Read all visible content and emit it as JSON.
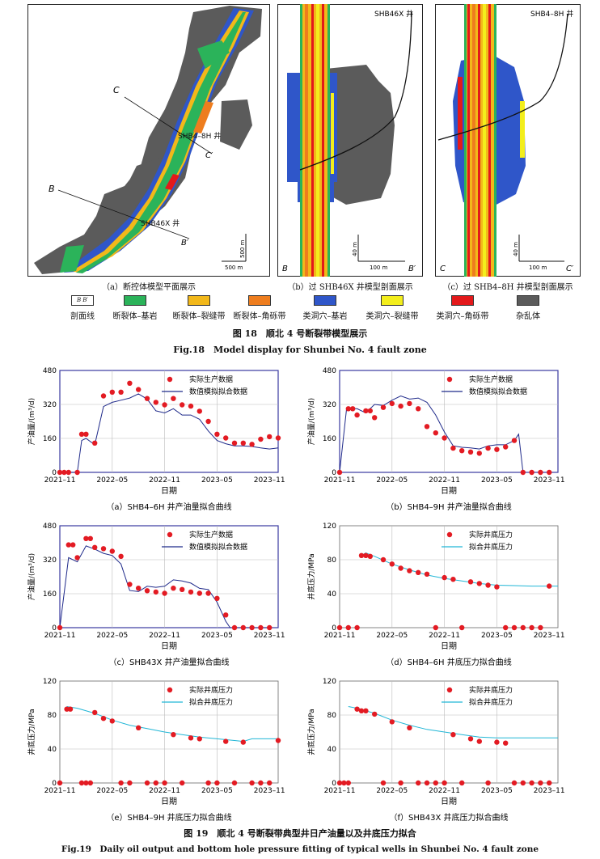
{
  "fig18": {
    "panels": [
      {
        "caption": "（a）断控体模型平面展示",
        "labels": {
          "C": "C",
          "Cp": "C′",
          "B": "B",
          "Bp": "B′",
          "well1": "SHB4–8H 井",
          "well2": "SHB46X 井",
          "scale_v": "500 m",
          "scale_h": "500 m"
        }
      },
      {
        "caption": "（b）过 SHB46X 井模型剖面展示",
        "labels": {
          "well": "SHB46X 井",
          "left": "B",
          "right": "B′",
          "scale_v": "40 m",
          "scale_h": "100 m"
        }
      },
      {
        "caption": "（c）过 SHB4–8H 井模型剖面展示",
        "labels": {
          "well": "SHB4–8H 井",
          "left": "C",
          "right": "C′",
          "scale_v": "40 m",
          "scale_h": "100 m"
        }
      }
    ],
    "legend_line_label": "剖面线",
    "legend_line_glyph": "B   B′",
    "legend": [
      {
        "name": "断裂体–基岩",
        "color": "#2bb35a"
      },
      {
        "name": "断裂体–裂缝带",
        "color": "#f2b81a"
      },
      {
        "name": "断裂体–角砾带",
        "color": "#ee7d1e"
      },
      {
        "name": "类洞穴–基岩",
        "color": "#2f56c9"
      },
      {
        "name": "类洞穴–裂缝带",
        "color": "#f3ee1c"
      },
      {
        "name": "类洞穴–角砾带",
        "color": "#e3191b"
      },
      {
        "name": "杂乱体",
        "color": "#5b5b5b"
      }
    ],
    "title_cn": "图 18　顺北 4 号断裂带模型展示",
    "title_en": "Fig.18　Model display for Shunbei No. 4 fault zone"
  },
  "fig19": {
    "title_cn": "图 19　顺北 4 号断裂带典型井日产油量以及井底压力拟合",
    "title_en": "Fig.19　Daily oil output and bottom hole pressure fitting of typical wells in Shunbei No. 4 fault zone",
    "xlabel": "日期",
    "x_ticks": [
      "2021–11",
      "2022–05",
      "2022–11",
      "2023–05",
      "2023–11"
    ]
  },
  "chart_data": [
    {
      "type": "scatter+line",
      "caption": "（a）SHB4–6H 井产油量拟合曲线",
      "ylabel": "产油量/(m³/d)",
      "xlabel": "日期",
      "ylim": [
        0,
        480
      ],
      "yticks": [
        0,
        160,
        320,
        480
      ],
      "x_range": [
        0,
        25
      ],
      "legend": [
        "实际生产数据",
        "数值模拟拟合数据"
      ],
      "actual": [
        [
          0,
          0
        ],
        [
          0.5,
          0
        ],
        [
          1,
          0
        ],
        [
          2,
          0
        ],
        [
          2.5,
          180
        ],
        [
          3,
          180
        ],
        [
          4,
          138
        ],
        [
          5,
          360
        ],
        [
          6,
          378
        ],
        [
          7,
          378
        ],
        [
          8,
          420
        ],
        [
          9,
          390
        ],
        [
          10,
          348
        ],
        [
          11,
          330
        ],
        [
          12,
          318
        ],
        [
          13,
          348
        ],
        [
          14,
          318
        ],
        [
          15,
          312
        ],
        [
          16,
          288
        ],
        [
          17,
          240
        ],
        [
          18,
          180
        ],
        [
          19,
          162
        ],
        [
          20,
          138
        ],
        [
          21,
          138
        ],
        [
          22,
          132
        ],
        [
          23,
          156
        ],
        [
          24,
          168
        ],
        [
          25,
          162
        ]
      ],
      "fit": [
        [
          0,
          0
        ],
        [
          2,
          0
        ],
        [
          2.5,
          150
        ],
        [
          3,
          160
        ],
        [
          4,
          130
        ],
        [
          5,
          310
        ],
        [
          6,
          330
        ],
        [
          7,
          340
        ],
        [
          8,
          350
        ],
        [
          9,
          370
        ],
        [
          10,
          345
        ],
        [
          11,
          290
        ],
        [
          12,
          280
        ],
        [
          13,
          300
        ],
        [
          14,
          270
        ],
        [
          15,
          270
        ],
        [
          16,
          250
        ],
        [
          17,
          195
        ],
        [
          18,
          150
        ],
        [
          19,
          135
        ],
        [
          20,
          125
        ],
        [
          21,
          125
        ],
        [
          22,
          122
        ],
        [
          23,
          115
        ],
        [
          24,
          110
        ],
        [
          25,
          115
        ]
      ]
    },
    {
      "type": "scatter+line",
      "caption": "（b）SHB4–9H 井产油量拟合曲线",
      "ylabel": "产油量/(m³/d)",
      "xlabel": "日期",
      "ylim": [
        0,
        480
      ],
      "yticks": [
        0,
        160,
        320,
        480
      ],
      "x_range": [
        0,
        25
      ],
      "legend": [
        "实际生产数据",
        "数值模拟拟合数据"
      ],
      "actual": [
        [
          0,
          0
        ],
        [
          1,
          300
        ],
        [
          1.5,
          300
        ],
        [
          2,
          270
        ],
        [
          3,
          290
        ],
        [
          3.5,
          290
        ],
        [
          4,
          258
        ],
        [
          5,
          306
        ],
        [
          6,
          324
        ],
        [
          7,
          312
        ],
        [
          8,
          324
        ],
        [
          9,
          300
        ],
        [
          10,
          216
        ],
        [
          11,
          186
        ],
        [
          12,
          162
        ],
        [
          13,
          114
        ],
        [
          14,
          102
        ],
        [
          15,
          96
        ],
        [
          16,
          90
        ],
        [
          17,
          114
        ],
        [
          18,
          108
        ],
        [
          19,
          120
        ],
        [
          20,
          150
        ],
        [
          21,
          0
        ],
        [
          22,
          0
        ],
        [
          23,
          0
        ],
        [
          24,
          0
        ]
      ],
      "fit": [
        [
          0,
          0
        ],
        [
          0.8,
          300
        ],
        [
          2,
          300
        ],
        [
          3,
          280
        ],
        [
          4,
          320
        ],
        [
          5,
          315
        ],
        [
          6,
          340
        ],
        [
          7,
          360
        ],
        [
          8,
          345
        ],
        [
          9,
          350
        ],
        [
          10,
          330
        ],
        [
          11,
          270
        ],
        [
          12,
          190
        ],
        [
          13,
          125
        ],
        [
          14,
          118
        ],
        [
          15,
          115
        ],
        [
          16,
          110
        ],
        [
          17,
          125
        ],
        [
          18,
          130
        ],
        [
          19,
          130
        ],
        [
          20,
          150
        ],
        [
          20.5,
          180
        ],
        [
          21,
          0
        ]
      ]
    },
    {
      "type": "scatter+line",
      "caption": "（c）SHB43X 井产油量拟合曲线",
      "ylabel": "产油量/(m³/d)",
      "xlabel": "日期",
      "ylim": [
        0,
        480
      ],
      "yticks": [
        0,
        160,
        320,
        480
      ],
      "x_range": [
        0,
        25
      ],
      "legend": [
        "实际生产数据",
        "数值模拟拟合数据"
      ],
      "actual": [
        [
          0,
          0
        ],
        [
          1,
          390
        ],
        [
          1.5,
          390
        ],
        [
          2,
          330
        ],
        [
          3,
          420
        ],
        [
          3.5,
          420
        ],
        [
          4,
          378
        ],
        [
          5,
          372
        ],
        [
          6,
          360
        ],
        [
          7,
          336
        ],
        [
          8,
          204
        ],
        [
          9,
          186
        ],
        [
          10,
          174
        ],
        [
          11,
          168
        ],
        [
          12,
          162
        ],
        [
          13,
          186
        ],
        [
          14,
          180
        ],
        [
          15,
          168
        ],
        [
          16,
          162
        ],
        [
          17,
          162
        ],
        [
          18,
          138
        ],
        [
          19,
          60
        ],
        [
          20,
          0
        ],
        [
          21,
          0
        ],
        [
          22,
          0
        ],
        [
          23,
          0
        ],
        [
          24,
          0
        ]
      ],
      "fit": [
        [
          0,
          0
        ],
        [
          1,
          330
        ],
        [
          2,
          310
        ],
        [
          3,
          385
        ],
        [
          4,
          370
        ],
        [
          5,
          350
        ],
        [
          6,
          340
        ],
        [
          7,
          300
        ],
        [
          8,
          175
        ],
        [
          9,
          170
        ],
        [
          10,
          195
        ],
        [
          11,
          190
        ],
        [
          12,
          195
        ],
        [
          13,
          225
        ],
        [
          14,
          220
        ],
        [
          15,
          210
        ],
        [
          16,
          185
        ],
        [
          17,
          180
        ],
        [
          18,
          120
        ],
        [
          19,
          30
        ],
        [
          19.5,
          0
        ],
        [
          24,
          0
        ]
      ]
    },
    {
      "type": "scatter+line",
      "caption": "（d）SHB4–6H 井底压力拟合曲线",
      "ylabel": "井底压力/MPa",
      "xlabel": "日期",
      "ylim": [
        0,
        120
      ],
      "yticks": [
        0,
        40,
        80,
        120
      ],
      "x_range": [
        0,
        25
      ],
      "legend": [
        "实际井底压力",
        "拟合井底压力"
      ],
      "actual": [
        [
          0,
          0
        ],
        [
          1,
          0
        ],
        [
          2,
          0
        ],
        [
          2.5,
          85
        ],
        [
          3,
          85
        ],
        [
          3.5,
          84
        ],
        [
          5,
          80
        ],
        [
          6,
          75
        ],
        [
          7,
          70
        ],
        [
          8,
          67
        ],
        [
          9,
          65
        ],
        [
          10,
          63
        ],
        [
          11,
          0
        ],
        [
          12,
          59
        ],
        [
          13,
          57
        ],
        [
          14,
          0
        ],
        [
          15,
          54
        ],
        [
          16,
          52
        ],
        [
          17,
          50
        ],
        [
          18,
          48
        ],
        [
          19,
          0
        ],
        [
          20,
          0
        ],
        [
          21,
          0
        ],
        [
          22,
          0
        ],
        [
          23,
          0
        ],
        [
          24,
          49
        ]
      ],
      "fit": [
        [
          2.5,
          85
        ],
        [
          3,
          88
        ],
        [
          4,
          84
        ],
        [
          6,
          75
        ],
        [
          8,
          68
        ],
        [
          10,
          62
        ],
        [
          12,
          58
        ],
        [
          14,
          55
        ],
        [
          16,
          52
        ],
        [
          18,
          50
        ],
        [
          20,
          49.5
        ],
        [
          22,
          49
        ],
        [
          24,
          49
        ],
        [
          25,
          49
        ]
      ]
    },
    {
      "type": "scatter+line",
      "caption": "（e）SHB4–9H 井底压力拟合曲线",
      "ylabel": "井底压力/MPa",
      "xlabel": "日期",
      "ylim": [
        0,
        120
      ],
      "yticks": [
        0,
        40,
        80,
        120
      ],
      "x_range": [
        0,
        25
      ],
      "legend": [
        "实际井底压力",
        "拟合井底压力"
      ],
      "actual": [
        [
          0,
          0
        ],
        [
          0.8,
          87
        ],
        [
          1.2,
          87
        ],
        [
          2.5,
          0
        ],
        [
          3,
          0
        ],
        [
          3.5,
          0
        ],
        [
          4,
          83
        ],
        [
          5,
          76
        ],
        [
          6,
          73
        ],
        [
          7,
          0
        ],
        [
          8,
          0
        ],
        [
          9,
          65
        ],
        [
          10,
          0
        ],
        [
          11,
          0
        ],
        [
          12,
          0
        ],
        [
          13,
          57
        ],
        [
          14,
          0
        ],
        [
          15,
          53
        ],
        [
          16,
          52
        ],
        [
          17,
          0
        ],
        [
          18,
          0
        ],
        [
          19,
          49
        ],
        [
          20,
          0
        ],
        [
          21,
          48
        ],
        [
          22,
          0
        ],
        [
          23,
          0
        ],
        [
          24,
          0
        ],
        [
          25,
          50
        ]
      ],
      "fit": [
        [
          0.8,
          90
        ],
        [
          2,
          88
        ],
        [
          4,
          82
        ],
        [
          6,
          74
        ],
        [
          8,
          68
        ],
        [
          10,
          64
        ],
        [
          12,
          60
        ],
        [
          14,
          57
        ],
        [
          16,
          54
        ],
        [
          18,
          52
        ],
        [
          20,
          50
        ],
        [
          21,
          49
        ],
        [
          22,
          52
        ],
        [
          24,
          52
        ],
        [
          25,
          52
        ]
      ]
    },
    {
      "type": "scatter+line",
      "caption": "（f）SHB43X 井底压力拟合曲线",
      "ylabel": "井底压力/MPa",
      "xlabel": "日期",
      "ylim": [
        0,
        120
      ],
      "yticks": [
        0,
        40,
        80,
        120
      ],
      "x_range": [
        0,
        25
      ],
      "legend": [
        "实际井底压力",
        "拟合井底压力"
      ],
      "actual": [
        [
          0,
          0
        ],
        [
          0.5,
          0
        ],
        [
          1,
          0
        ],
        [
          2,
          87
        ],
        [
          2.5,
          85
        ],
        [
          3,
          85
        ],
        [
          4,
          81
        ],
        [
          5,
          0
        ],
        [
          6,
          72
        ],
        [
          7,
          0
        ],
        [
          8,
          65
        ],
        [
          9,
          0
        ],
        [
          10,
          0
        ],
        [
          11,
          0
        ],
        [
          12,
          0
        ],
        [
          13,
          57
        ],
        [
          14,
          0
        ],
        [
          15,
          52
        ],
        [
          16,
          49
        ],
        [
          17,
          0
        ],
        [
          18,
          48
        ],
        [
          19,
          47
        ],
        [
          20,
          0
        ],
        [
          21,
          0
        ],
        [
          22,
          0
        ],
        [
          23,
          0
        ],
        [
          24,
          0
        ]
      ],
      "fit": [
        [
          1,
          90
        ],
        [
          2,
          88
        ],
        [
          4,
          82
        ],
        [
          6,
          74
        ],
        [
          8,
          68
        ],
        [
          10,
          63
        ],
        [
          12,
          60
        ],
        [
          14,
          57
        ],
        [
          16,
          54
        ],
        [
          18,
          53
        ],
        [
          20,
          53
        ],
        [
          22,
          53
        ],
        [
          24,
          53
        ],
        [
          25,
          53
        ]
      ]
    }
  ]
}
